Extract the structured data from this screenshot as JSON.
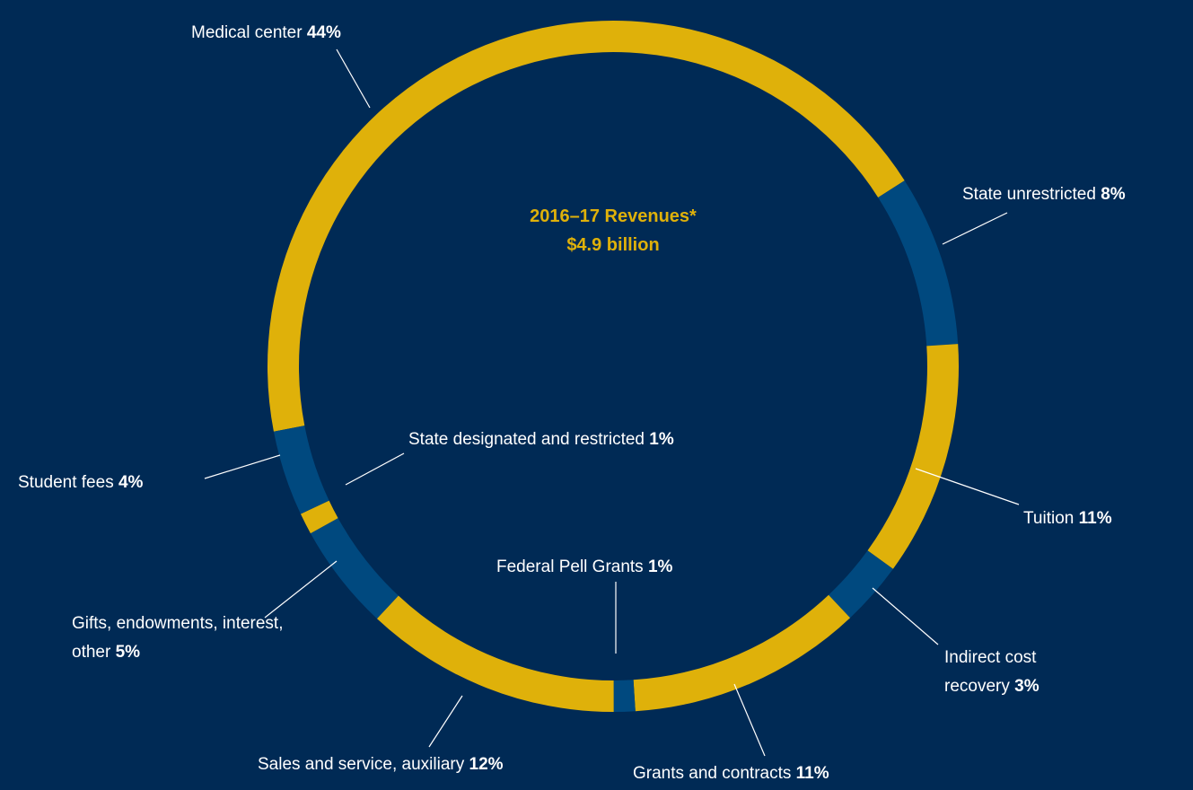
{
  "chart_data": {
    "type": "donut",
    "title": "2016–17 Revenues*",
    "subtitle": "$4.9 billion",
    "categories": [
      "Medical center",
      "State unrestricted",
      "Tuition",
      "Indirect cost recovery",
      "Grants and contracts",
      "Federal Pell Grants",
      "Sales and service, auxiliary",
      "Gifts, endowments, interest, other",
      "State designated and restricted",
      "Student fees"
    ],
    "values": [
      44,
      8,
      11,
      3,
      11,
      1,
      12,
      5,
      1,
      4
    ],
    "value_labels": [
      "44%",
      "8%",
      "11%",
      "3%",
      "11%",
      "1%",
      "12%",
      "5%",
      "1%",
      "4%"
    ],
    "colors": [
      "#dfb10a",
      "#00497f",
      "#dfb10a",
      "#00497f",
      "#dfb10a",
      "#00497f",
      "#dfb10a",
      "#00497f",
      "#dfb10a",
      "#00497f"
    ]
  }
}
